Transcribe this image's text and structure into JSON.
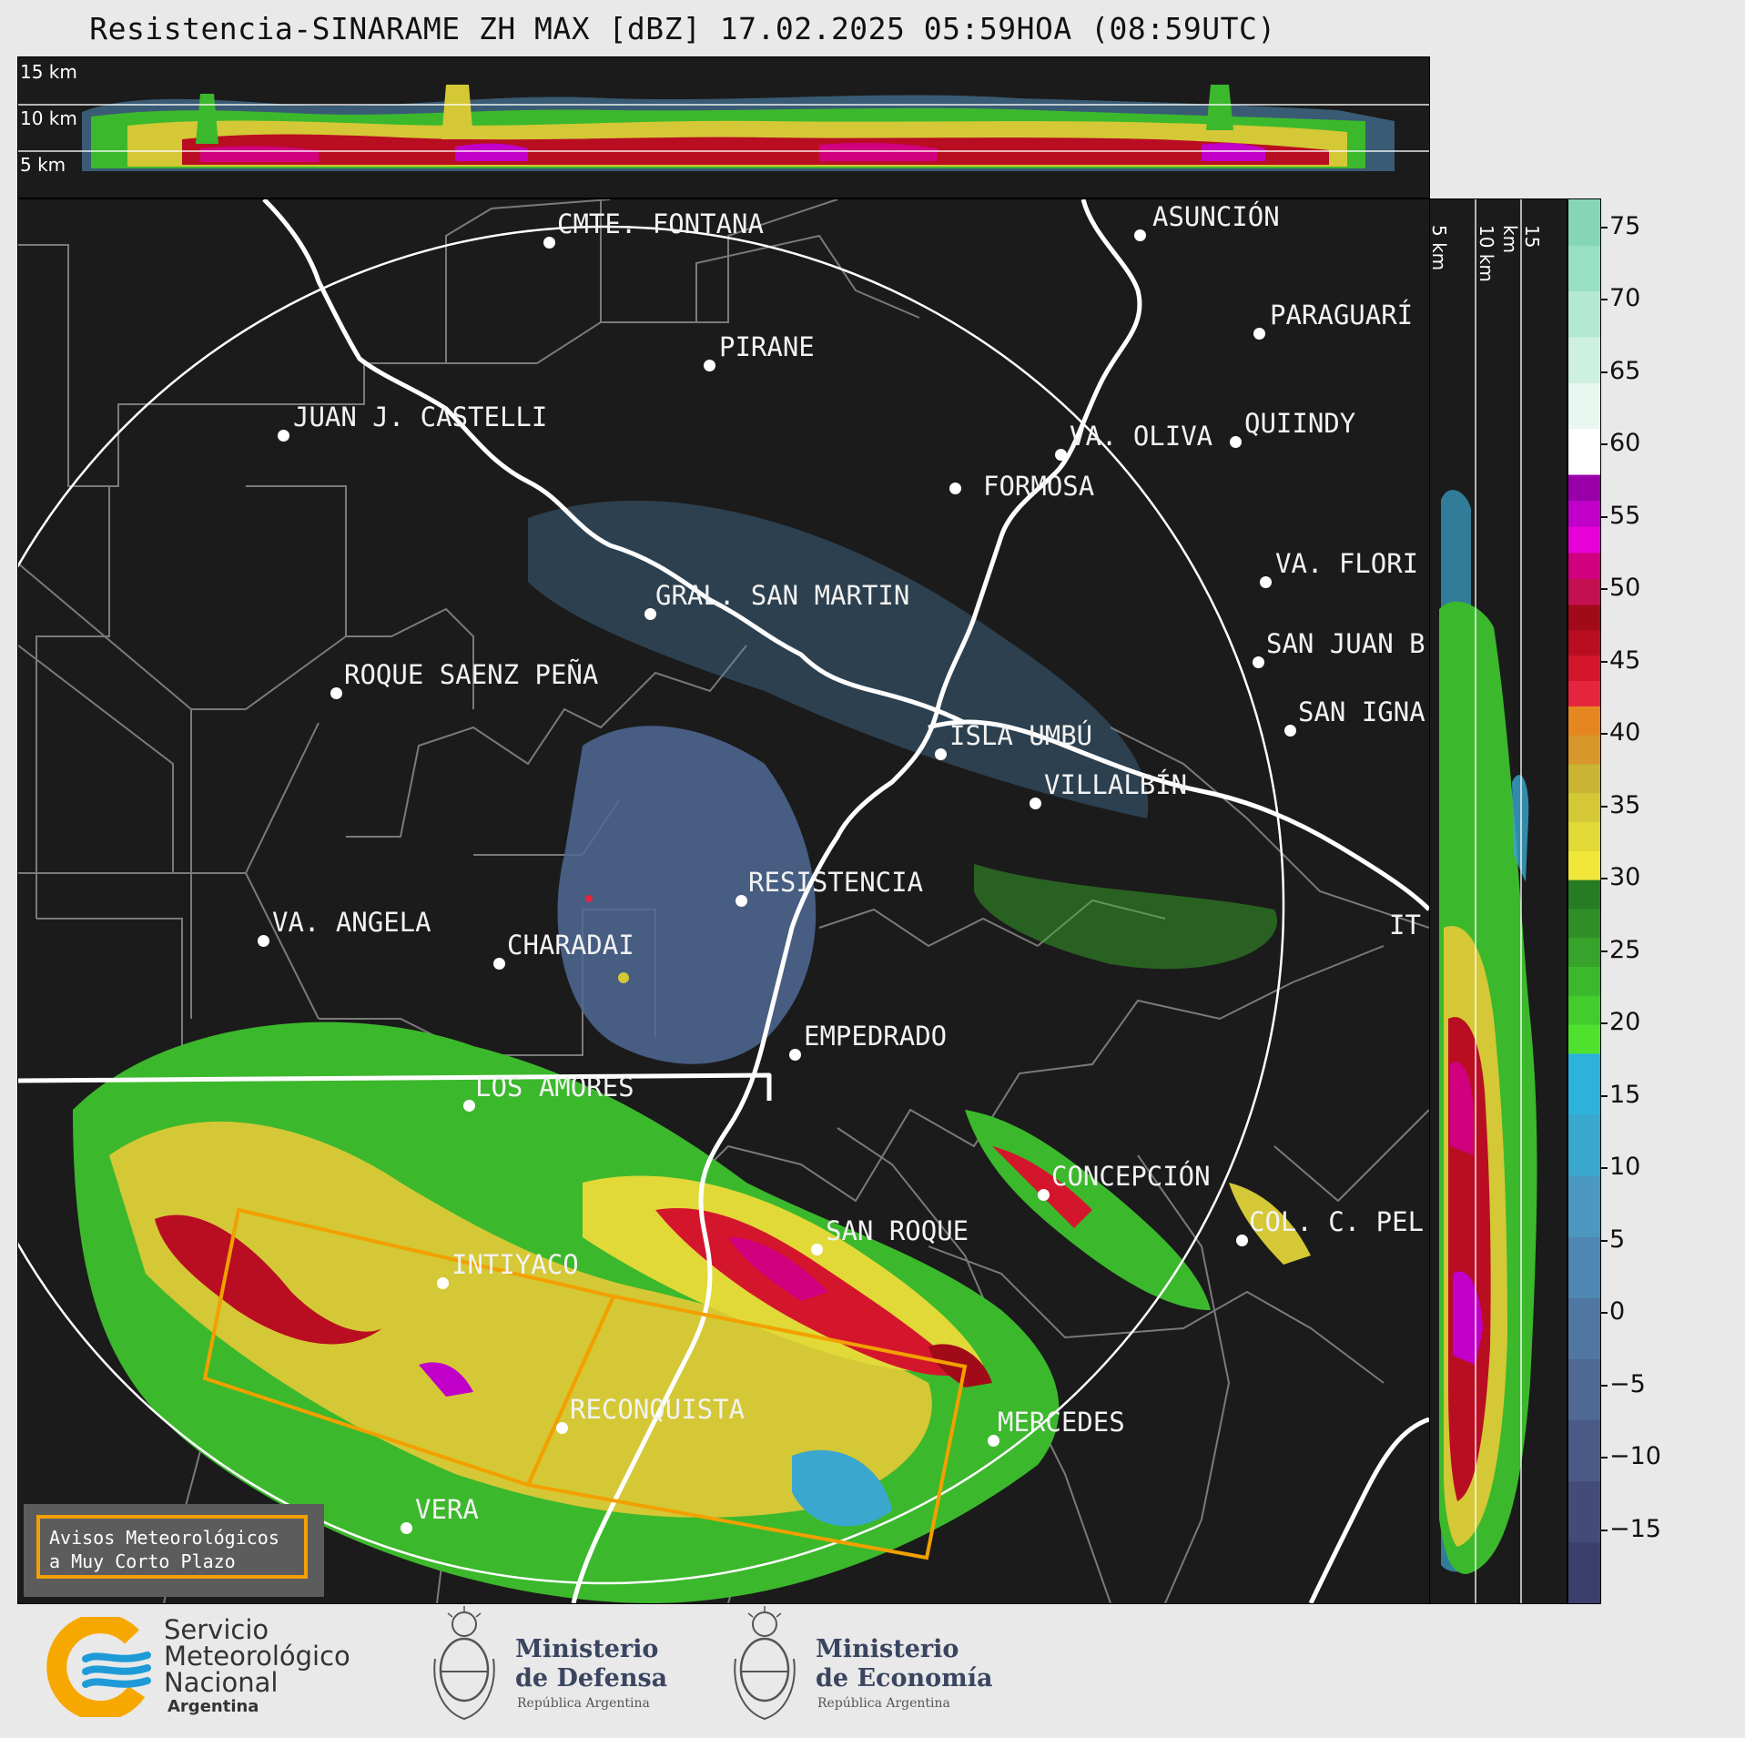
{
  "title": "Resistencia-SINARAME ZH MAX [dBZ] 17.02.2025 05:59HOA (08:59UTC)",
  "top_panel": {
    "km_labels": [
      "15 km",
      "10 km",
      "5 km"
    ]
  },
  "side_panel": {
    "km_labels": [
      "5 km",
      "10 km",
      "15 km"
    ]
  },
  "colorbar": {
    "ticks": [
      "75",
      "70",
      "65",
      "60",
      "55",
      "50",
      "45",
      "40",
      "35",
      "30",
      "25",
      "20",
      "15",
      "10",
      "5",
      "0",
      "−5",
      "−10",
      "−15"
    ],
    "range": [
      -20,
      77
    ],
    "bands": [
      {
        "from": -20,
        "to": 18,
        "colors": [
          "#3c3f6c",
          "#434c78",
          "#4a5a86",
          "#4f6894",
          "#4f77a2",
          "#4e87b1",
          "#4a98c0",
          "#3aa7cf",
          "#2db2dd"
        ]
      },
      {
        "from": 18,
        "to": 30,
        "colors": [
          "#4ee22e",
          "#43cd2d",
          "#3cb82c",
          "#36a32a",
          "#2f8f27",
          "#277b23"
        ]
      },
      {
        "from": 30,
        "to": 42,
        "colors": [
          "#f1e73b",
          "#e1d938",
          "#d4c836",
          "#c9b434",
          "#d8962b",
          "#e68620"
        ]
      },
      {
        "from": 42,
        "to": 49,
        "colors": [
          "#e5253d",
          "#d4162d",
          "#b90e22",
          "#a10a18"
        ]
      },
      {
        "from": 49,
        "to": 58,
        "colors": [
          "#c3104f",
          "#d0007e",
          "#e800d8",
          "#c000c9",
          "#9900a9"
        ]
      },
      {
        "from": 58,
        "to": 77,
        "colors": [
          "#ffffff",
          "#e8f7f0",
          "#cdf0e2",
          "#b3e8d4",
          "#99dfc6",
          "#85d6b8"
        ]
      }
    ]
  },
  "cities": [
    {
      "name": "CMTE. FONTANA",
      "marker": true
    },
    {
      "name": "ASUNCIÓN",
      "marker": true
    },
    {
      "name": "PARAGUARÍ",
      "marker": true
    },
    {
      "name": "PIRANE",
      "marker": true
    },
    {
      "name": "JUAN J. CASTELLI",
      "marker": true
    },
    {
      "name": "VA. OLIVA",
      "marker": true
    },
    {
      "name": "QUIINDY",
      "marker": true
    },
    {
      "name": "FORMOSA",
      "marker": true
    },
    {
      "name": "VA. FLORI",
      "marker": true
    },
    {
      "name": "GRAL. SAN MARTIN",
      "marker": true
    },
    {
      "name": "SAN JUAN B",
      "marker": true
    },
    {
      "name": "ROQUE SAENZ PEÑA",
      "marker": true
    },
    {
      "name": "SAN IGNA",
      "marker": true
    },
    {
      "name": "ISLA UMBÚ",
      "marker": true
    },
    {
      "name": "VILLALBÍN",
      "marker": true
    },
    {
      "name": "RESISTENCIA",
      "marker": true
    },
    {
      "name": "VA. ANGELA",
      "marker": true
    },
    {
      "name": "CHARADAI",
      "marker": true
    },
    {
      "name": "IT",
      "marker": false
    },
    {
      "name": "EMPEDRADO",
      "marker": true
    },
    {
      "name": "LOS AMORES",
      "marker": true
    },
    {
      "name": "CONCEPCIÓN",
      "marker": true
    },
    {
      "name": "SAN ROQUE",
      "marker": true
    },
    {
      "name": "COL. C. PEL",
      "marker": true
    },
    {
      "name": "INTIYACO",
      "marker": true
    },
    {
      "name": "RECONQUISTA",
      "marker": true
    },
    {
      "name": "MERCEDES",
      "marker": true
    },
    {
      "name": "VERA",
      "marker": true
    }
  ],
  "warning_box": {
    "line1": "Avisos Meteorológicos",
    "line2": "a Muy Corto Plazo"
  },
  "logos": {
    "smn": {
      "line1": "Servicio",
      "line2": "Meteorológico",
      "line3": "Nacional",
      "line4": "Argentina",
      "colors": {
        "ring": "#f7a800",
        "waves": "#1e9bd7"
      }
    },
    "defensa": {
      "line1": "Ministerio",
      "line2": "de Defensa",
      "line3": "República Argentina"
    },
    "economia": {
      "line1": "Ministerio",
      "line2": "de Economía",
      "line3": "República Argentina"
    }
  },
  "colors": {
    "background": "#1b1b1b",
    "page": "#e9e9e9",
    "warning_polygon": "#f2a000",
    "border": "#ffffff",
    "province": "#7a7a7a"
  }
}
